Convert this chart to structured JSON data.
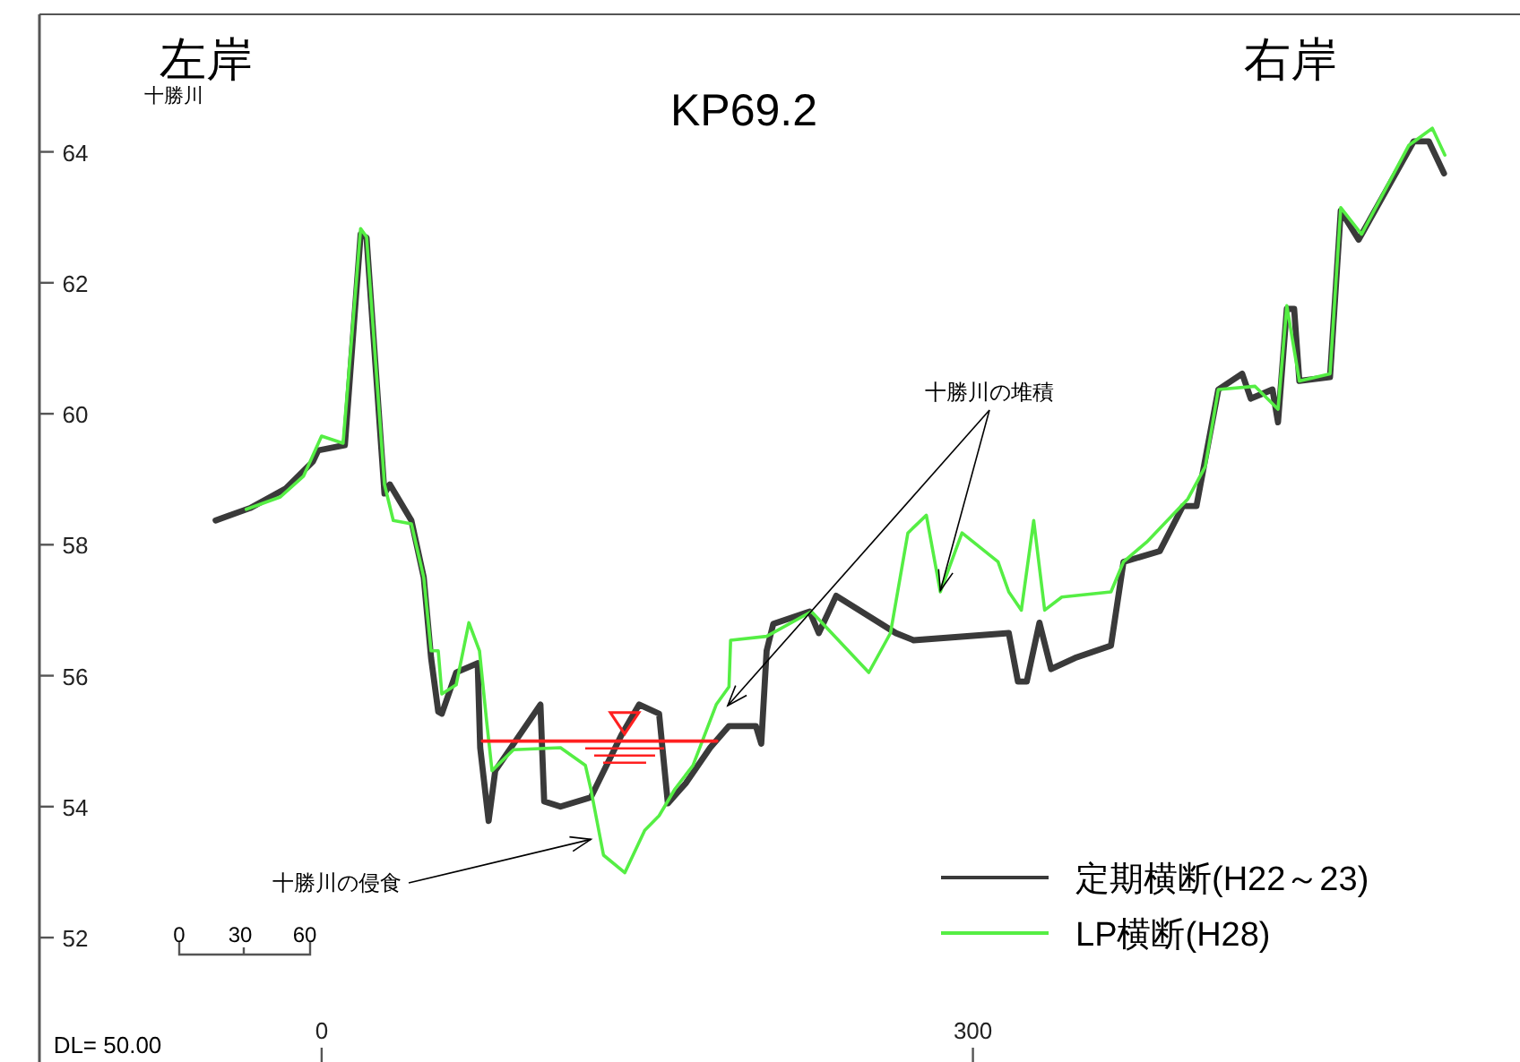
{
  "chart_data": {
    "type": "line",
    "title": "KP69.2",
    "xlim": [
      -130,
      552
    ],
    "ylim": [
      50.1,
      66.1
    ],
    "xticks": [
      0,
      300
    ],
    "yticks": [
      52,
      54,
      56,
      58,
      60,
      62,
      64
    ],
    "grid": false,
    "legend": "bottom right",
    "marker": "none",
    "line_style": "solid",
    "series": [
      {
        "name": "定期横断(H22～23)",
        "color": "#3a3a3a",
        "x": [
          -48.8,
          -33,
          -16.5,
          -4,
          -1.6,
          10.7,
          18,
          20.7,
          28.9,
          31.4,
          41.3,
          47,
          50.4,
          53.7,
          55.4,
          62,
          71.9,
          73,
          76.9,
          80,
          100.8,
          102.5,
          110,
          124,
          138,
          146.3,
          155.4,
          159.5,
          167.8,
          179,
          187.6,
          200,
          202.5,
          205,
          208,
          224.8,
          229,
          237,
          264.5,
          272.7,
          316.5,
          320.7,
          324.8,
          330.6,
          336,
          347,
          363.6,
          369.4,
          386,
          396.7,
          403,
          413,
          424,
          428,
          438,
          440.5,
          444.6,
          448,
          450.4,
          464.5,
          469.4,
          477.7,
          503,
          510,
          517
        ],
        "values": [
          58.37,
          58.56,
          58.86,
          59.27,
          59.44,
          59.52,
          62.74,
          62.69,
          58.78,
          58.92,
          58.37,
          57.5,
          56.27,
          55.45,
          55.42,
          56.05,
          56.19,
          54.9,
          53.78,
          54.55,
          55.56,
          54.08,
          54.0,
          54.14,
          55.09,
          55.56,
          55.42,
          54.05,
          54.36,
          54.9,
          55.23,
          55.23,
          54.96,
          56.38,
          56.79,
          56.98,
          56.65,
          57.22,
          56.65,
          56.54,
          56.65,
          55.91,
          55.91,
          56.81,
          56.1,
          56.27,
          56.46,
          57.74,
          57.9,
          58.59,
          58.59,
          60.37,
          60.61,
          60.23,
          60.37,
          59.87,
          61.6,
          61.6,
          60.5,
          60.56,
          63.1,
          62.66,
          64.16,
          64.16,
          63.67
        ]
      },
      {
        "name": "LP横断(H28)",
        "color": "#55ee44",
        "x": [
          -34.7,
          -19,
          -8.3,
          0,
          9.9,
          18,
          20.7,
          28.9,
          33,
          41.3,
          47,
          50.4,
          53.7,
          55.4,
          62,
          67.8,
          72.7,
          76,
          78.5,
          88.4,
          110,
          121.5,
          124,
          129.8,
          139.7,
          148.8,
          155.4,
          162.8,
          171,
          181.8,
          187.6,
          188.4,
          205,
          225.6,
          252,
          262,
          270,
          278.5,
          285,
          295,
          311.6,
          316.5,
          322.3,
          328,
          333,
          341,
          363.6,
          369.4,
          380,
          399,
          407,
          413,
          430,
          440.5,
          444.6,
          450.4,
          464.5,
          469.4,
          479,
          500.8,
          511.6,
          517.4
        ],
        "values": [
          58.54,
          58.73,
          59.05,
          59.66,
          59.55,
          62.83,
          62.7,
          58.92,
          58.37,
          58.32,
          57.5,
          56.38,
          56.38,
          55.72,
          55.86,
          56.81,
          56.38,
          55.3,
          54.55,
          54.87,
          54.9,
          54.63,
          54.27,
          53.26,
          52.99,
          53.64,
          53.86,
          54.27,
          54.63,
          55.56,
          55.83,
          56.54,
          56.6,
          56.98,
          56.05,
          56.65,
          58.18,
          58.45,
          57.28,
          58.18,
          57.74,
          57.28,
          57.0,
          58.37,
          57.0,
          57.2,
          57.28,
          57.74,
          58.04,
          58.7,
          59.19,
          60.37,
          60.42,
          60.07,
          61.65,
          60.5,
          60.61,
          63.15,
          62.74,
          64.1,
          64.36,
          63.95
        ]
      },
      {
        "color": "#ff2020",
        "x": [
          74,
          182
        ],
        "values": [
          55.0,
          55.0
        ]
      }
    ],
    "annotations": [
      "左岸",
      "右岸",
      "十勝川",
      "DL= 50.00",
      "0",
      "30",
      "60",
      {
        "text": "十勝川の侵食",
        "x": 124,
        "y": 53.5
      },
      {
        "text": "十勝川の堆積",
        "x": 285,
        "y": 57.3
      }
    ]
  }
}
